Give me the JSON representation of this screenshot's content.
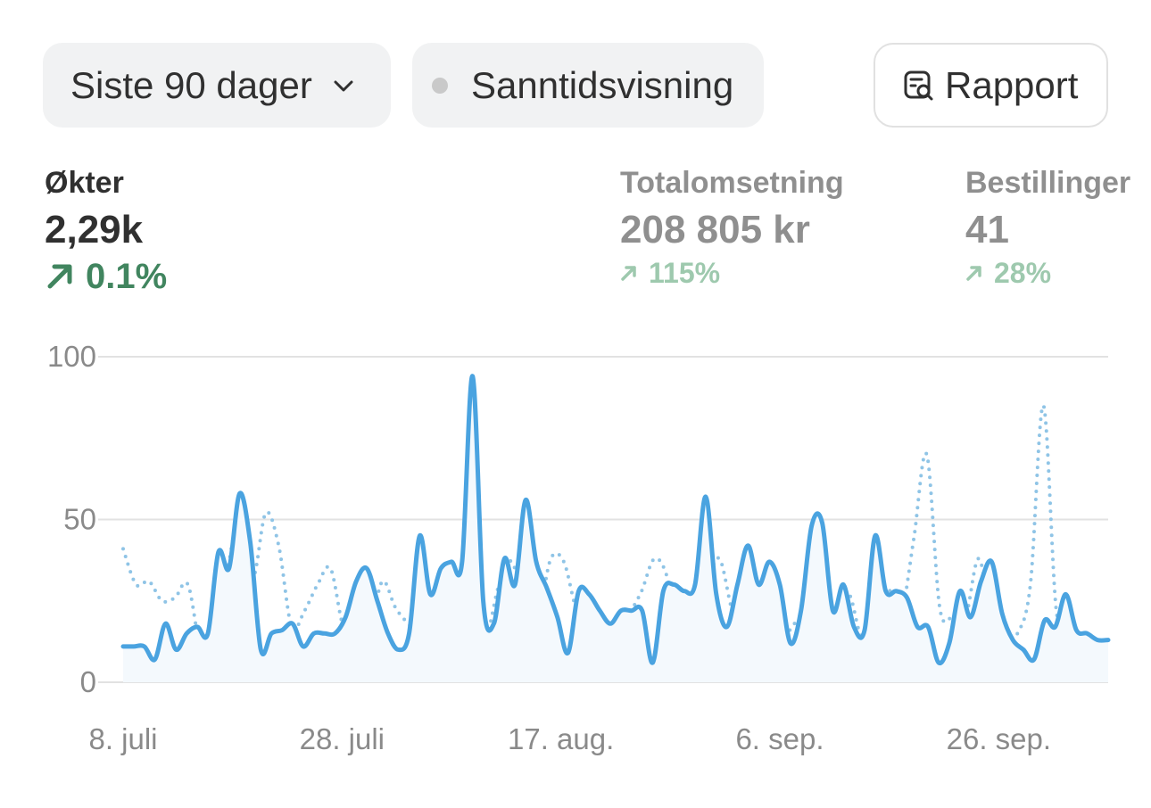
{
  "toolbar": {
    "date_range_label": "Siste 90 dager",
    "live_view_label": "Sanntidsvisning",
    "report_label": "Rapport"
  },
  "metrics": [
    {
      "label": "Økter",
      "value": "2,29k",
      "change": "0.1%"
    },
    {
      "label": "Totalomsetning",
      "value": "208 805 kr",
      "change": "115%"
    },
    {
      "label": "Bestillinger",
      "value": "41",
      "change": "28%"
    }
  ],
  "icons": {
    "date_range": "chevron-down-icon",
    "live_view": "status-dot-icon",
    "report": "report-search-icon",
    "change": "arrow-up-right-icon"
  },
  "colors": {
    "primary_series": "#4aa3e0",
    "comparison_series": "#8fc4e6",
    "positive_change": "#41855f",
    "positive_change_muted": "#9ec9ae"
  },
  "chart_data": {
    "type": "line",
    "x_tick_labels": [
      "8. juli",
      "28. juli",
      "17. aug.",
      "6. sep.",
      "26. sep."
    ],
    "x_tick_positions": [
      0,
      20,
      40,
      60,
      80
    ],
    "y_ticks": [
      0,
      50,
      100
    ],
    "ylim": [
      0,
      100
    ],
    "xlim": [
      0,
      90
    ],
    "grid": true,
    "series": [
      {
        "style": "solid",
        "values": [
          11,
          11,
          11,
          7,
          18,
          10,
          15,
          17,
          15,
          40,
          35,
          58,
          43,
          10,
          15,
          16,
          18,
          11,
          15,
          15,
          15,
          20,
          31,
          35,
          25,
          15,
          10,
          15,
          45,
          27,
          35,
          37,
          37,
          94,
          25,
          18,
          38,
          30,
          56,
          37,
          29,
          20,
          9,
          28,
          27,
          22,
          18,
          22,
          22,
          22,
          6,
          28,
          30,
          28,
          30,
          57,
          27,
          17,
          30,
          42,
          30,
          37,
          30,
          12,
          22,
          48,
          49,
          22,
          30,
          17,
          16,
          45,
          28,
          28,
          26,
          17,
          17,
          6,
          12,
          28,
          20,
          31,
          37,
          21,
          13,
          10,
          7,
          19,
          17,
          27,
          16,
          15,
          13,
          13
        ]
      },
      {
        "style": "dotted",
        "values": [
          41,
          30,
          31,
          25,
          26,
          30,
          10,
          10,
          33,
          51,
          32,
          52,
          42,
          17,
          22,
          30,
          35,
          17,
          17,
          16,
          31,
          23,
          18,
          15,
          27,
          30,
          23,
          18,
          14,
          30,
          37,
          22,
          20,
          38,
          37,
          22,
          18,
          15,
          8,
          20,
          28,
          38,
          32,
          12,
          18,
          30,
          38,
          22,
          15,
          17,
          22,
          15,
          19,
          23,
          19,
          19,
          27,
          14,
          25,
          29,
          21,
          44,
          70,
          23,
          20,
          20,
          38,
          20,
          13,
          15,
          30,
          85,
          22,
          18,
          12,
          13,
          10
        ]
      }
    ]
  }
}
